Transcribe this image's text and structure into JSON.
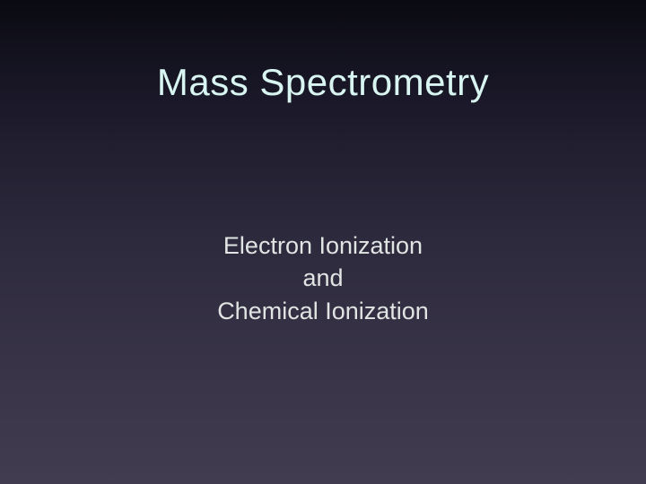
{
  "slide": {
    "title": "Mass Spectrometry",
    "subtitle_line1": "Electron Ionization",
    "subtitle_line2": "and",
    "subtitle_line3": "Chemical Ionization",
    "background_gradient": {
      "top": "#0a0a12",
      "upper_mid": "#1a1828",
      "mid": "#2e2a3e",
      "lower_mid": "#3a3548",
      "bottom": "#423c50"
    },
    "title_color": "#d8f5f2",
    "subtitle_color": "#e0e4e2",
    "title_fontsize": 42,
    "subtitle_fontsize": 27,
    "font_family": "Arial"
  }
}
